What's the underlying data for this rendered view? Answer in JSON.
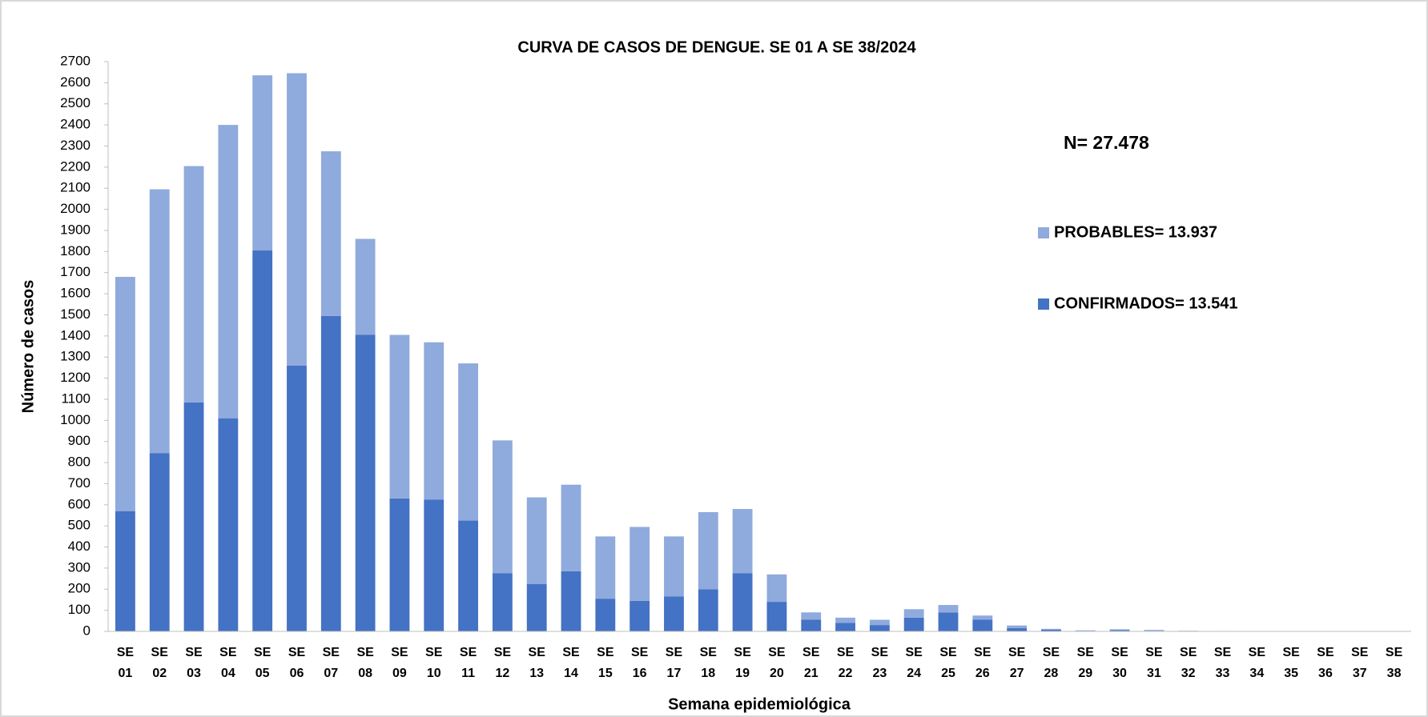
{
  "chart_data": {
    "type": "bar",
    "stacked": true,
    "title": "CURVA DE CASOS DE DENGUE. SE 01 A SE 38/2024",
    "x_label": "Semana epidemiológica",
    "y_label": "Número de casos",
    "annotation": "N= 27.478",
    "categories": [
      "SE 01",
      "SE 02",
      "SE 03",
      "SE 04",
      "SE 05",
      "SE 06",
      "SE 07",
      "SE 08",
      "SE 09",
      "SE 10",
      "SE 11",
      "SE 12",
      "SE 13",
      "SE 14",
      "SE 15",
      "SE 16",
      "SE 17",
      "SE 18",
      "SE 19",
      "SE 20",
      "SE 21",
      "SE 22",
      "SE 23",
      "SE 24",
      "SE 25",
      "SE 26",
      "SE 27",
      "SE 28",
      "SE 29",
      "SE 30",
      "SE 31",
      "SE 32",
      "SE 33",
      "SE 34",
      "SE 35",
      "SE 36",
      "SE 37",
      "SE 38"
    ],
    "series": [
      {
        "name": "CONFIRMADOS= 13.541",
        "color": "#4472c4",
        "values": [
          570,
          845,
          1085,
          1010,
          1805,
          1260,
          1495,
          1405,
          630,
          625,
          525,
          275,
          225,
          285,
          155,
          145,
          165,
          200,
          275,
          140,
          55,
          40,
          30,
          65,
          90,
          55,
          15,
          8,
          2,
          6,
          3,
          1,
          1,
          0,
          0,
          0,
          0,
          0
        ]
      },
      {
        "name": "PROBABLES= 13.937",
        "color": "#8faadc",
        "values": [
          1110,
          1250,
          1120,
          1390,
          830,
          1385,
          780,
          455,
          775,
          745,
          745,
          630,
          410,
          410,
          295,
          350,
          285,
          365,
          305,
          130,
          35,
          25,
          25,
          40,
          35,
          20,
          13,
          4,
          3,
          4,
          4,
          2,
          1,
          1,
          0,
          0,
          0,
          0
        ]
      }
    ],
    "ylim": [
      0,
      2700
    ],
    "yticks": [
      0,
      100,
      200,
      300,
      400,
      500,
      600,
      700,
      800,
      900,
      1000,
      1100,
      1200,
      1300,
      1400,
      1500,
      1600,
      1700,
      1800,
      1900,
      2000,
      2100,
      2200,
      2300,
      2400,
      2500,
      2600,
      2700
    ],
    "grid": false
  }
}
